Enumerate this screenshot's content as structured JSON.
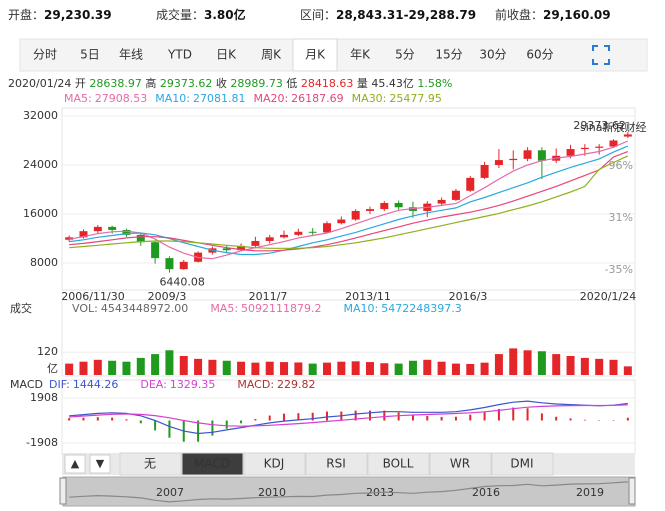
{
  "quote": {
    "open_label": "开盘：",
    "open": "29,230.39",
    "volume_label": "成交量：",
    "volume": "3.80亿",
    "range_label": "区间：",
    "range": "28,843.31-29,288.79",
    "prev_label": "前收盘：",
    "prev": "29,160.09"
  },
  "tabs": [
    "分时",
    "5日",
    "年线",
    "YTD",
    "日K",
    "周K",
    "月K",
    "年K",
    "5分",
    "15分",
    "30分",
    "60分"
  ],
  "active_tab": 6,
  "info": {
    "date": "2020/01/24",
    "open_label": "开",
    "open": 28638.97,
    "high_label": "高",
    "high": 29373.62,
    "close_label": "收",
    "close": 28989.73,
    "low_label": "低",
    "low": 28418.63,
    "vol_label": "量",
    "vol": "45.43亿",
    "change": "1.58%"
  },
  "indicator_tabs": [
    "无",
    "MACD",
    "KDJ",
    "RSI",
    "BOLL",
    "WR",
    "DMI"
  ],
  "active_indicator": 1,
  "navigator_years": [
    "2007",
    "2010",
    "2013",
    "2016",
    "2019"
  ],
  "chart_data": [
    {
      "type": "candlestick",
      "up_color": "#e4262a",
      "down_color": "#1f9a1f",
      "x_labels": [
        "2006/11/30",
        "2009/3",
        "2011/7",
        "2013/11",
        "2016/3",
        "2020/1/24"
      ],
      "open": [
        11800,
        12200,
        13200,
        13900,
        13400,
        12600,
        11400,
        8800,
        7000,
        8200,
        9700,
        10400,
        10100,
        10800,
        11600,
        12200,
        12600,
        13100,
        13000,
        14500,
        15100,
        16500,
        16800,
        17800,
        17100,
        16500,
        17700,
        18300,
        19800,
        21900,
        24000,
        24800,
        25000,
        26400,
        24700,
        25500,
        26600,
        26800,
        27000,
        28638.97
      ],
      "close": [
        12200,
        13200,
        13900,
        13400,
        12600,
        11400,
        8800,
        7000,
        8200,
        9700,
        10400,
        10100,
        10800,
        11600,
        12200,
        12600,
        13100,
        13000,
        14500,
        15100,
        16500,
        16800,
        17800,
        17100,
        16500,
        17700,
        18300,
        19800,
        21900,
        24000,
        24800,
        25000,
        26400,
        24700,
        25500,
        26600,
        26800,
        27000,
        28000,
        28989.73
      ],
      "high": [
        12500,
        13500,
        14200,
        14100,
        13600,
        12800,
        11600,
        9100,
        8500,
        9900,
        10700,
        10900,
        11200,
        12300,
        12600,
        13300,
        13600,
        13700,
        14800,
        15600,
        16800,
        17200,
        18100,
        18200,
        18000,
        18100,
        18700,
        20100,
        22200,
        24500,
        26600,
        26400,
        26900,
        26900,
        26700,
        27300,
        27400,
        27400,
        28200,
        29373.62
      ],
      "low": [
        11500,
        12000,
        12900,
        12800,
        12300,
        10800,
        7900,
        6440.08,
        6900,
        8100,
        9400,
        9600,
        9900,
        10400,
        11200,
        12000,
        12400,
        12600,
        12900,
        14300,
        14900,
        16000,
        16500,
        16700,
        15400,
        15500,
        17300,
        18100,
        19600,
        21700,
        23500,
        23300,
        24600,
        21700,
        24300,
        25100,
        25500,
        25700,
        26800,
        28418.63
      ],
      "series": [
        {
          "name": "MA5:",
          "color": "#e66aa8",
          "values": [
            11900,
            12300,
            12800,
            13100,
            13200,
            12900,
            11900,
            10600,
            9600,
            8900,
            8700,
            9300,
            10000,
            10500,
            11000,
            11500,
            12100,
            12500,
            12900,
            13600,
            14400,
            15200,
            15900,
            16600,
            16900,
            17100,
            17400,
            17700,
            19000,
            20300,
            21700,
            23000,
            24000,
            24700,
            25100,
            25400,
            25800,
            26200,
            26900,
            27908.53
          ]
        },
        {
          "name": "MA10:",
          "color": "#2aa9df",
          "values": [
            11500,
            11800,
            12200,
            12500,
            12800,
            12900,
            12600,
            12000,
            11300,
            10700,
            10100,
            9700,
            9400,
            9400,
            9600,
            10100,
            10700,
            11300,
            11800,
            12400,
            13000,
            13700,
            14400,
            15100,
            15700,
            16200,
            16600,
            17000,
            18000,
            18700,
            19500,
            20300,
            21100,
            22000,
            22800,
            23600,
            24300,
            25000,
            26100,
            27081.81
          ]
        },
        {
          "name": "MA20:",
          "color": "#e8447d",
          "values": [
            11000,
            11200,
            11500,
            11800,
            12100,
            12300,
            12300,
            12100,
            11700,
            11300,
            10900,
            10500,
            10200,
            10000,
            10000,
            10100,
            10300,
            10600,
            11000,
            11500,
            12100,
            12700,
            13300,
            13900,
            14500,
            15000,
            15500,
            15900,
            16300,
            16800,
            17400,
            18100,
            18900,
            19700,
            20500,
            21400,
            22300,
            23200,
            25300,
            26187.69
          ]
        },
        {
          "name": "MA30:",
          "color": "#8db11a",
          "values": [
            10500,
            10700,
            10900,
            11100,
            11300,
            11500,
            11600,
            11600,
            11500,
            11300,
            11100,
            10900,
            10700,
            10500,
            10400,
            10400,
            10400,
            10500,
            10700,
            11000,
            11300,
            11700,
            12100,
            12600,
            13100,
            13600,
            14100,
            14600,
            15100,
            15600,
            16100,
            16700,
            17300,
            18000,
            18800,
            19600,
            20500,
            23300,
            24400,
            25477.95
          ]
        }
      ],
      "ylim": [
        3600,
        33300
      ],
      "yticks": [
        8000,
        16000,
        24000,
        32000
      ],
      "grid": true,
      "max_label": 29373.62,
      "min_label": 6440.08,
      "pct_labels": [
        "96%",
        "31%",
        "-35%"
      ]
    },
    {
      "type": "bar",
      "title": "成交",
      "vol_label": "VOL:",
      "vol": "4543448972.00",
      "ma5_label": "MA5:",
      "ma5": 5092111879.2,
      "ma10_label": "MA10:",
      "ma10": 5472248397.3,
      "ma5_color": "#e66aa8",
      "ma10_color": "#2aa9df",
      "unit": "亿",
      "values": [
        60,
        70,
        80,
        75,
        70,
        90,
        110,
        130,
        100,
        85,
        80,
        75,
        70,
        65,
        70,
        68,
        66,
        60,
        65,
        70,
        72,
        68,
        62,
        60,
        75,
        80,
        70,
        60,
        58,
        65,
        110,
        140,
        130,
        125,
        110,
        100,
        90,
        85,
        80,
        45.43
      ],
      "ylim": [
        0,
        200
      ],
      "yticks": [
        120
      ]
    },
    {
      "type": "macd",
      "title": "MACD",
      "dif_label": "DIF:",
      "dif": 1444.26,
      "dea_label": "DEA:",
      "dea": 1329.35,
      "macd_label": "MACD:",
      "macd": 229.82,
      "dif_color": "#3c55cc",
      "dea_color": "#d63fd0",
      "macd_color": "#b03030",
      "series": [
        {
          "name": "DIF",
          "values": [
            400,
            500,
            600,
            650,
            600,
            400,
            0,
            -500,
            -900,
            -1100,
            -1000,
            -800,
            -600,
            -400,
            -200,
            -50,
            50,
            150,
            300,
            400,
            550,
            650,
            750,
            750,
            700,
            700,
            700,
            750,
            900,
            1100,
            1350,
            1550,
            1650,
            1500,
            1400,
            1350,
            1300,
            1250,
            1300,
            1444.26
          ]
        },
        {
          "name": "DEA",
          "values": [
            300,
            380,
            460,
            530,
            550,
            520,
            420,
            230,
            0,
            -200,
            -360,
            -450,
            -480,
            -460,
            -410,
            -340,
            -260,
            -180,
            -80,
            20,
            130,
            230,
            330,
            410,
            470,
            510,
            550,
            590,
            650,
            740,
            860,
            1000,
            1130,
            1200,
            1240,
            1260,
            1270,
            1270,
            1280,
            1329.35
          ]
        }
      ],
      "values": [
        200,
        240,
        280,
        240,
        100,
        -240,
        -840,
        -1460,
        -1800,
        -1800,
        -1280,
        -700,
        -240,
        120,
        420,
        580,
        620,
        660,
        760,
        760,
        840,
        840,
        840,
        680,
        460,
        380,
        300,
        320,
        500,
        720,
        980,
        1100,
        1040,
        600,
        320,
        180,
        60,
        -40,
        40,
        229.82
      ],
      "ylim": [
        -2800,
        2800
      ],
      "yticks": [
        1908,
        -1908
      ]
    }
  ]
}
